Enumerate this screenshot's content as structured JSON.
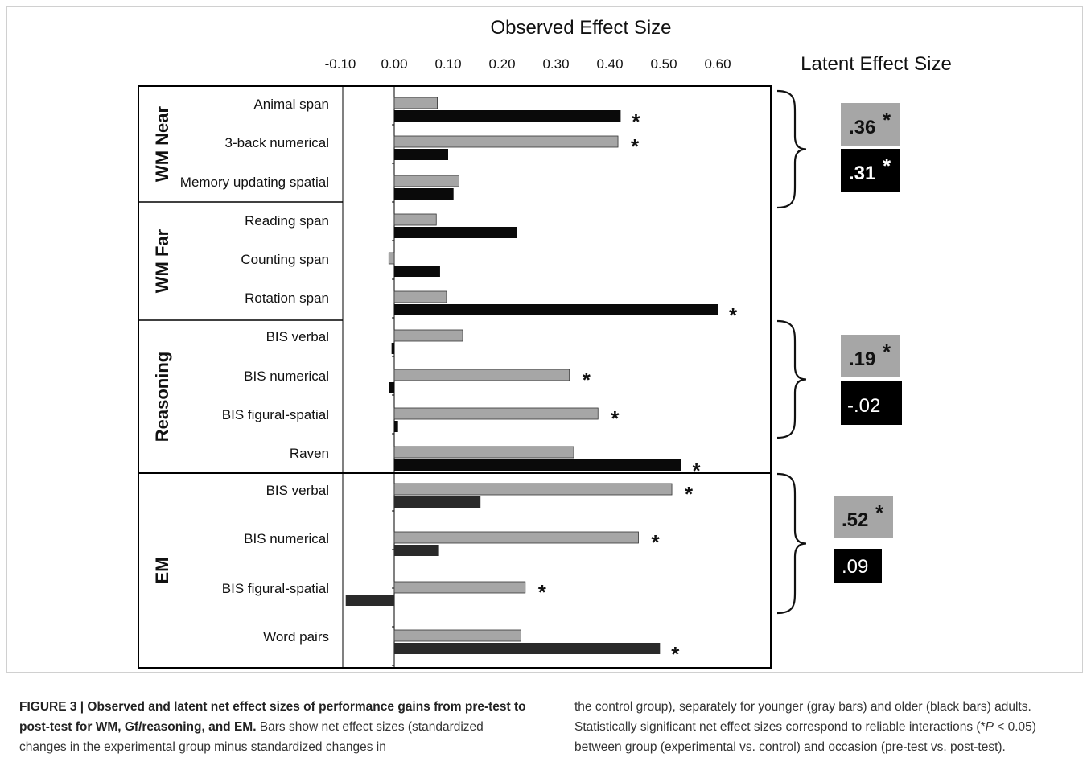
{
  "chart_data": {
    "type": "bar",
    "orientation": "horizontal",
    "title": "Observed Effect Size",
    "latent_title": "Latent Effect Size",
    "xlim": [
      -0.1,
      0.7
    ],
    "xticks": [
      "-0.10",
      "0.00",
      "0.10",
      "0.20",
      "0.30",
      "0.40",
      "0.50",
      "0.60"
    ],
    "groups": [
      {
        "name": "WM Near",
        "items": [
          {
            "label": "Animal span",
            "younger": 0.08,
            "older": 0.42,
            "star_younger": false,
            "star_older": true
          },
          {
            "label": "3-back numerical",
            "younger": 0.415,
            "older": 0.1,
            "star_younger": true,
            "star_older": false
          },
          {
            "label": "Memory updating spatial",
            "younger": 0.12,
            "older": 0.11,
            "star_younger": false,
            "star_older": false
          }
        ]
      },
      {
        "name": "WM Far",
        "items": [
          {
            "label": "Reading span",
            "younger": 0.078,
            "older": 0.228,
            "star_younger": false,
            "star_older": false
          },
          {
            "label": "Counting span",
            "younger": -0.01,
            "older": 0.085,
            "star_younger": false,
            "star_older": false
          },
          {
            "label": "Rotation span",
            "younger": 0.097,
            "older": 0.6,
            "star_younger": false,
            "star_older": true
          }
        ]
      },
      {
        "name": "Reasoning",
        "items": [
          {
            "label": "BIS verbal",
            "younger": 0.127,
            "older": -0.005,
            "star_younger": false,
            "star_older": false
          },
          {
            "label": "BIS numerical",
            "younger": 0.325,
            "older": -0.01,
            "star_younger": true,
            "star_older": false
          },
          {
            "label": "BIS figural-spatial",
            "younger": 0.378,
            "older": 0.007,
            "star_younger": true,
            "star_older": false
          },
          {
            "label": "Raven",
            "younger": 0.333,
            "older": 0.532,
            "star_younger": false,
            "star_older": true
          }
        ]
      },
      {
        "name": "EM",
        "items": [
          {
            "label": "BIS verbal",
            "younger": 0.515,
            "older": 0.16,
            "star_younger": true,
            "star_older": false
          },
          {
            "label": "BIS numerical",
            "younger": 0.453,
            "older": 0.083,
            "star_younger": true,
            "star_older": false
          },
          {
            "label": "BIS figural-spatial",
            "younger": 0.243,
            "older": -0.09,
            "star_younger": true,
            "star_older": false
          },
          {
            "label": "Word pairs",
            "younger": 0.235,
            "older": 0.493,
            "star_younger": false,
            "star_older": true
          }
        ]
      }
    ],
    "latent": [
      {
        "group": "WM Near",
        "younger": ".36",
        "older": ".31",
        "star_younger": true,
        "star_older": true
      },
      {
        "group": "Reasoning",
        "younger": ".19",
        "older": "-.02",
        "star_younger": true,
        "star_older": false
      },
      {
        "group": "EM",
        "younger": ".52",
        "older": ".09",
        "star_younger": true,
        "star_older": false
      }
    ],
    "colors": {
      "younger": "#a6a6a6",
      "older": "#0a0a0a",
      "em_older": "#2a2a2a"
    },
    "star": "*"
  },
  "caption": {
    "bold": "FIGURE 3 | Observed and latent net effect sizes of performance gains from pre-test to post-test for WM, Gf/reasoning, and EM.",
    "text_left": " Bars show net effect sizes (standardized changes in the experimental group minus standardized changes in",
    "text_right_1": "the control group), separately for younger (gray bars) and older (black bars) adults. Statistically significant net effect sizes correspond to reliable interactions (",
    "p_star": "*",
    "p_text": "P",
    "text_right_2": " < 0.05) between group (experimental vs. control) and occasion (pre-test vs. post-test)."
  }
}
